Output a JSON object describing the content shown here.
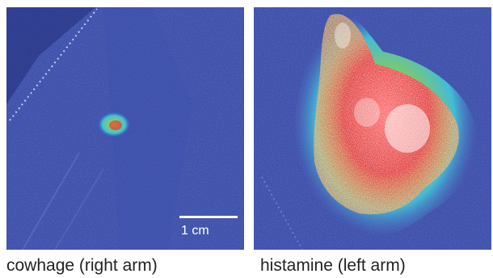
{
  "panels": [
    {
      "caption": "cowhage (right arm)",
      "scale_bar_label": "1 cm"
    },
    {
      "caption": "histamine (left arm)"
    }
  ],
  "colors": {
    "background_blue": "#2f3e9a",
    "dark_blue": "#1f2a80",
    "light_blue": "#4a78c8",
    "cyan": "#44c1d8",
    "green": "#7fcf6a",
    "yellow": "#e8e14a",
    "red": "#e03a3a",
    "white": "#ffffff"
  }
}
